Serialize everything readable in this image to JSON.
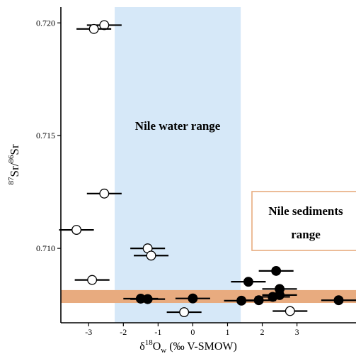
{
  "chart_data": {
    "type": "scatter",
    "title": "",
    "xlabel": {
      "prefix": "δ",
      "sup": "18",
      "main": "O",
      "sub": "w",
      "suffix": " (‰ V-SMOW)"
    },
    "ylabel": {
      "sup1": "87",
      "main1": "Sr/",
      "sup2": "86",
      "main2": "Sr"
    },
    "xlim": [
      -3.8,
      4.7
    ],
    "ylim": [
      0.7067,
      0.7207
    ],
    "x_ticks": [
      -3,
      -2,
      -1,
      0,
      1,
      2,
      3
    ],
    "x_tick_labels": [
      "-3",
      "-2",
      "-1",
      "0",
      "1",
      "2",
      "3"
    ],
    "y_ticks": [
      0.71,
      0.715,
      0.72
    ],
    "y_tick_labels": [
      "0.710",
      "0.715",
      "0.720"
    ],
    "grid": false,
    "colors": {
      "water_band": "#d6e8f8",
      "sediment_band": "#e8ab7f",
      "sediment_box_border": "#e8ab7f",
      "open_marker_fill": "#ffffff",
      "filled_marker_fill": "#000000",
      "ink": "#000000"
    },
    "bands": {
      "nile_water_range": {
        "label": "Nile water range",
        "x_min": -2.25,
        "x_max": 1.38
      },
      "nile_sediments_range": {
        "label_line1": "Nile sediments",
        "label_line2": "range",
        "y_min": 0.70758,
        "y_max": 0.70815
      }
    },
    "xerr_half_width": 0.5,
    "series": [
      {
        "marker": "open",
        "points": [
          {
            "x": -2.55,
            "y": 0.7199
          },
          {
            "x": -2.85,
            "y": 0.71973
          },
          {
            "x": -2.55,
            "y": 0.71243
          },
          {
            "x": -3.35,
            "y": 0.71082
          },
          {
            "x": -1.3,
            "y": 0.71
          },
          {
            "x": -1.2,
            "y": 0.70968
          },
          {
            "x": -2.9,
            "y": 0.7086
          },
          {
            "x": -0.25,
            "y": 0.70717
          },
          {
            "x": 2.8,
            "y": 0.70722
          }
        ]
      },
      {
        "marker": "filled",
        "points": [
          {
            "x": 2.4,
            "y": 0.709
          },
          {
            "x": 1.6,
            "y": 0.70852
          },
          {
            "x": 2.5,
            "y": 0.7082
          },
          {
            "x": 2.5,
            "y": 0.70793
          },
          {
            "x": -1.5,
            "y": 0.70777
          },
          {
            "x": -1.3,
            "y": 0.70775
          },
          {
            "x": 0.0,
            "y": 0.70778
          },
          {
            "x": 1.4,
            "y": 0.70768
          },
          {
            "x": 1.9,
            "y": 0.7077
          },
          {
            "x": 2.3,
            "y": 0.70785
          },
          {
            "x": 4.2,
            "y": 0.7077
          }
        ]
      }
    ]
  }
}
